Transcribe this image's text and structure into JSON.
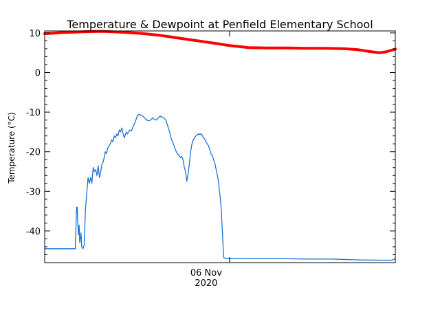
{
  "chart_data": {
    "type": "line",
    "title": "Temperature & Dewpoint at Penfield Elementary School",
    "xlabel": "",
    "ylabel": "Temperature (°C)",
    "ylim": [
      -48,
      10.5
    ],
    "y_ticks": [
      10,
      0,
      -10,
      -20,
      -30,
      -40
    ],
    "y_tick_labels": [
      "10",
      "0",
      "-10",
      "-20",
      "-30",
      "-40"
    ],
    "x_range_hours": [
      -29,
      26
    ],
    "x_ticks": [
      {
        "hour": 0,
        "label_line1": "06 Nov",
        "label_line2": "2020"
      }
    ],
    "grid": false,
    "series": [
      {
        "color": "#ff0000",
        "x_hours": [
          -29,
          -26,
          -23,
          -20,
          -17,
          -14,
          -11,
          -8,
          -5,
          -2,
          0,
          3,
          6,
          9,
          12,
          15,
          18,
          20,
          22,
          23.5,
          24.5,
          26
        ],
        "values": [
          9.8,
          10.1,
          10.3,
          10.4,
          10.2,
          9.9,
          9.4,
          8.7,
          8.0,
          7.3,
          6.8,
          6.3,
          6.2,
          6.2,
          6.1,
          6.1,
          6.0,
          5.8,
          5.3,
          5.0,
          5.2,
          5.9
        ]
      },
      {
        "color": "#1a72d8",
        "x_hours": [
          -29,
          -26,
          -24.2,
          -24.0,
          -23.9,
          -23.8,
          -23.7,
          -23.6,
          -23.5,
          -23.3,
          -23.2,
          -23.0,
          -22.9,
          -22.8,
          -22.6,
          -22.4,
          -22.2,
          -22.0,
          -21.8,
          -21.6,
          -21.4,
          -21.2,
          -21.0,
          -20.8,
          -20.6,
          -20.4,
          -20.2,
          -20.0,
          -19.8,
          -19.5,
          -19.3,
          -19.1,
          -18.9,
          -18.7,
          -18.5,
          -18.3,
          -18.1,
          -17.9,
          -17.7,
          -17.5,
          -17.3,
          -17.1,
          -16.9,
          -16.7,
          -16.5,
          -16.2,
          -16.0,
          -15.7,
          -15.4,
          -15.1,
          -14.8,
          -14.5,
          -14.2,
          -13.9,
          -13.6,
          -13.3,
          -13.0,
          -12.7,
          -12.4,
          -12.1,
          -11.8,
          -11.5,
          -11.2,
          -10.9,
          -10.6,
          -10.3,
          -10.0,
          -9.7,
          -9.4,
          -9.1,
          -8.8,
          -8.5,
          -8.2,
          -7.9,
          -7.7,
          -7.5,
          -7.3,
          -7.1,
          -6.9,
          -6.7,
          -6.5,
          -6.3,
          -6.1,
          -5.9,
          -5.7,
          -5.5,
          -5.3,
          -5.1,
          -4.9,
          -4.7,
          -4.5,
          -4.3,
          -4.1,
          -3.9,
          -3.7,
          -3.5,
          -3.3,
          -3.1,
          -2.9,
          -2.7,
          -2.5,
          -2.3,
          -2.1,
          -1.9,
          -1.7,
          -1.6,
          -1.5,
          -1.4,
          -1.3,
          -1.2,
          -1.1,
          -1.0,
          -0.9,
          -0.5,
          0,
          4,
          8,
          12,
          16,
          20,
          24,
          25.2,
          25.6,
          26
        ],
        "values": [
          -44.5,
          -44.5,
          -44.5,
          -34.0,
          -34.0,
          -38.0,
          -41.0,
          -38.5,
          -43.0,
          -40.5,
          -44.0,
          -44.5,
          -44.0,
          -43.5,
          -34.5,
          -30.5,
          -26.5,
          -28.0,
          -26.5,
          -28.0,
          -24.0,
          -25.0,
          -24.5,
          -26.0,
          -23.5,
          -26.5,
          -25.0,
          -23.0,
          -22.5,
          -20.0,
          -20.5,
          -19.0,
          -18.5,
          -18.0,
          -17.0,
          -17.5,
          -16.0,
          -16.5,
          -15.5,
          -16.0,
          -14.5,
          -15.0,
          -14.0,
          -15.5,
          -16.5,
          -15.0,
          -15.5,
          -14.5,
          -14.8,
          -13.5,
          -12.5,
          -11.0,
          -10.5,
          -10.8,
          -11.0,
          -11.5,
          -12.0,
          -12.2,
          -12.0,
          -11.5,
          -11.8,
          -12.0,
          -11.5,
          -11.0,
          -11.2,
          -11.5,
          -12.0,
          -13.5,
          -15.0,
          -17.0,
          -18.0,
          -19.5,
          -20.5,
          -21.0,
          -21.5,
          -21.2,
          -22.0,
          -24.0,
          -25.0,
          -27.5,
          -25.5,
          -23.0,
          -20.0,
          -18.0,
          -17.0,
          -16.5,
          -16.0,
          -15.8,
          -15.5,
          -15.6,
          -15.5,
          -15.8,
          -16.5,
          -16.8,
          -17.5,
          -18.0,
          -18.5,
          -19.5,
          -20.5,
          -21.0,
          -22.0,
          -23.0,
          -24.5,
          -26.0,
          -28.0,
          -30.0,
          -31.0,
          -32.5,
          -35.0,
          -38.0,
          -41.0,
          -44.5,
          -46.8,
          -46.9,
          -46.9,
          -47.0,
          -47.0,
          -47.1,
          -47.1,
          -47.3,
          -47.4,
          -47.4,
          -47.3,
          -47.0
        ]
      }
    ]
  }
}
